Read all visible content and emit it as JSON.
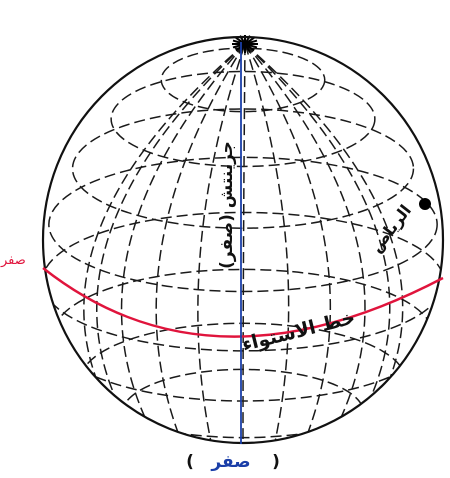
{
  "labels": {
    "meridian": "جرينتش (صفر)",
    "equator": "خط الاستواء",
    "riyadh": "الرياض",
    "left_zero": "صفر",
    "bottom_zero": "صفر",
    "bottom_paren_open": "(",
    "bottom_paren_close": ")"
  },
  "colors": {
    "equator": "#e0143c",
    "meridian": "#1a3ea8",
    "grid": "#1a1a1a",
    "outline": "#111111",
    "text_dark": "#111111"
  }
}
